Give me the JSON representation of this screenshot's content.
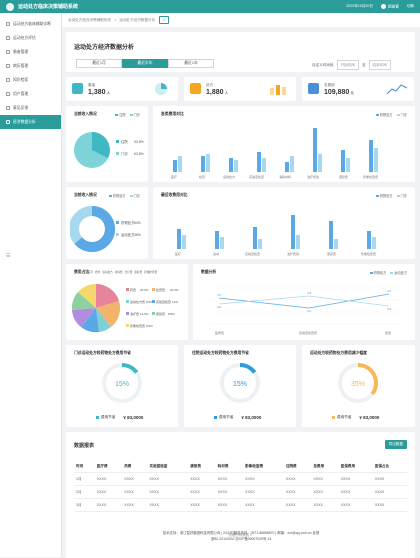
{
  "app": {
    "title": "运动处方临床决策辅助系统",
    "date": "2020年10月20日",
    "user": "超级管",
    "action": "切换"
  },
  "sidebar": {
    "items": [
      {
        "label": "运动处方临床辅助诊断",
        "active": false
      },
      {
        "label": "运动处方评估",
        "active": false
      },
      {
        "label": "患者管理",
        "active": false
      },
      {
        "label": "病历管理",
        "active": false
      },
      {
        "label": "知识检索",
        "active": false
      },
      {
        "label": "用户管理",
        "active": false
      },
      {
        "label": "意见反馈",
        "active": false
      },
      {
        "label": "经济数据分析",
        "active": true
      }
    ],
    "collapse": "☰"
  },
  "breadcrumb": {
    "items": [
      "运动处方临床决策辅助系统",
      "运动处方经济数据分析"
    ],
    "tab": "×"
  },
  "page": {
    "title": "运动处方经济数据分析"
  },
  "segments": [
    "最近1月",
    "最近半年",
    "最近1年"
  ],
  "daterange": {
    "label": "自定义时间段",
    "start": "开始时间",
    "to": "至",
    "end": "结束时间"
  },
  "stats": [
    {
      "label": "患者",
      "value": "1,380",
      "unit": "人",
      "color": "#3fb8c4"
    },
    {
      "label": "处方",
      "value": "1,880",
      "unit": "人",
      "color": "#f5a623"
    },
    {
      "label": "总费用",
      "value": "109,880",
      "unit": "元",
      "color": "#4a90d9"
    }
  ],
  "charts": {
    "patient": {
      "title": "当前收入情况",
      "legend": [
        "住院",
        "门诊"
      ],
      "items": [
        {
          "label": "住院",
          "pct": "33.5%"
        },
        {
          "label": "门诊",
          "pct": "63.5%"
        }
      ]
    },
    "feeBar": {
      "title": "各类费用对比",
      "legend": [
        "药物处方",
        "门诊"
      ],
      "categories": [
        "医疗",
        "检查",
        "运动处方",
        "实验室检查",
        "消耗材料",
        "治疗费用",
        "康复费",
        "影像检查费"
      ]
    },
    "income": {
      "title": "当前收入情况",
      "legend": [
        "药物处方",
        "门诊"
      ],
      "items": [
        {
          "label": "药物处方",
          "pct": "64%"
        },
        {
          "label": "运动处方",
          "pct": "36%"
        }
      ]
    },
    "fee2": {
      "title": "最近收费用对比",
      "legend": [
        "药物处方",
        "门诊"
      ],
      "categories": [
        "医疗",
        "运动",
        "实验室检查",
        "治疗费用",
        "康复费",
        "影像检查费"
      ]
    },
    "ratio": {
      "title": "费用占比",
      "legend": [
        "医疗",
        "检查",
        "运动处方",
        "材料费",
        "治疗费",
        "康复费",
        "影像检查费"
      ],
      "items": [
        {
          "label": "药费",
          "pct": "20.5%"
        },
        {
          "label": "检查费",
          "pct": "20.3%"
        },
        {
          "label": "运动处方费",
          "pct": "8.5%"
        },
        {
          "label": "实验室检查",
          "pct": "12%"
        },
        {
          "label": "治疗费",
          "pct": "13.5%"
        },
        {
          "label": "康复费",
          "pct": "8.8%"
        },
        {
          "label": "影像检查费",
          "pct": "8.5%"
        }
      ]
    },
    "trend": {
      "title": "数据分析",
      "legend": [
        "药物处方",
        "运动处方"
      ],
      "categories": [
        "医学费",
        "实验室检查费",
        "费用"
      ],
      "labels": [
        "4.5",
        "4.6",
        "4.9",
        "4.0",
        "4.5",
        "3.5"
      ]
    }
  },
  "gauges": [
    {
      "title": "门诊运动处方较药物处方费用节省",
      "pct": "15%",
      "legend": "费用节省",
      "amount": "¥ 83,0000",
      "color": "#3fb8c4"
    },
    {
      "title": "住院运动处方较药物处方费用节省",
      "pct": "15%",
      "legend": "费用节省",
      "amount": "¥ 83,0000",
      "color": "#2e9be0"
    },
    {
      "title": "运动处方较药物处方费用减少幅度",
      "pct": "35%",
      "legend": "费用节省",
      "amount": "¥ 83,0000",
      "color": "#f5b85a"
    }
  ],
  "table": {
    "title": "数据报表",
    "export": "导出数据",
    "more": "查看所有数据 ∨",
    "headers": [
      "时间",
      "医疗费",
      "药费",
      "实验室检查",
      "康复费",
      "耗材费",
      "影像检查费",
      "住院费",
      "总费用",
      "医保费用",
      "医保占比"
    ],
    "rows": [
      [
        "1月",
        "XXXX",
        "XXXX",
        "XXXX",
        "XXXX",
        "XXXX",
        "XXXX",
        "XXXX",
        "XXXX",
        "XXXX",
        "XXXX"
      ],
      [
        "2月",
        "XXXX",
        "XXXX",
        "XXXX",
        "XXXX",
        "XXXX",
        "XXXX",
        "XXXX",
        "XXXX",
        "XXXX",
        "XXXX"
      ],
      [
        "3月",
        "XXXX",
        "XXXX",
        "XXXX",
        "XXXX",
        "XXXX",
        "XXXX",
        "XXXX",
        "XXXX",
        "XXXX",
        "XXXX"
      ]
    ]
  },
  "footer": {
    "line1": "技术支持：浙江智好集团科技有限公司 | 24小时服务热线：0571-88888870 | 邮箱：xxx@qq.com.cn 反馈",
    "line2": "浙B2-20100042 浙ICP备05007039号-13"
  }
}
